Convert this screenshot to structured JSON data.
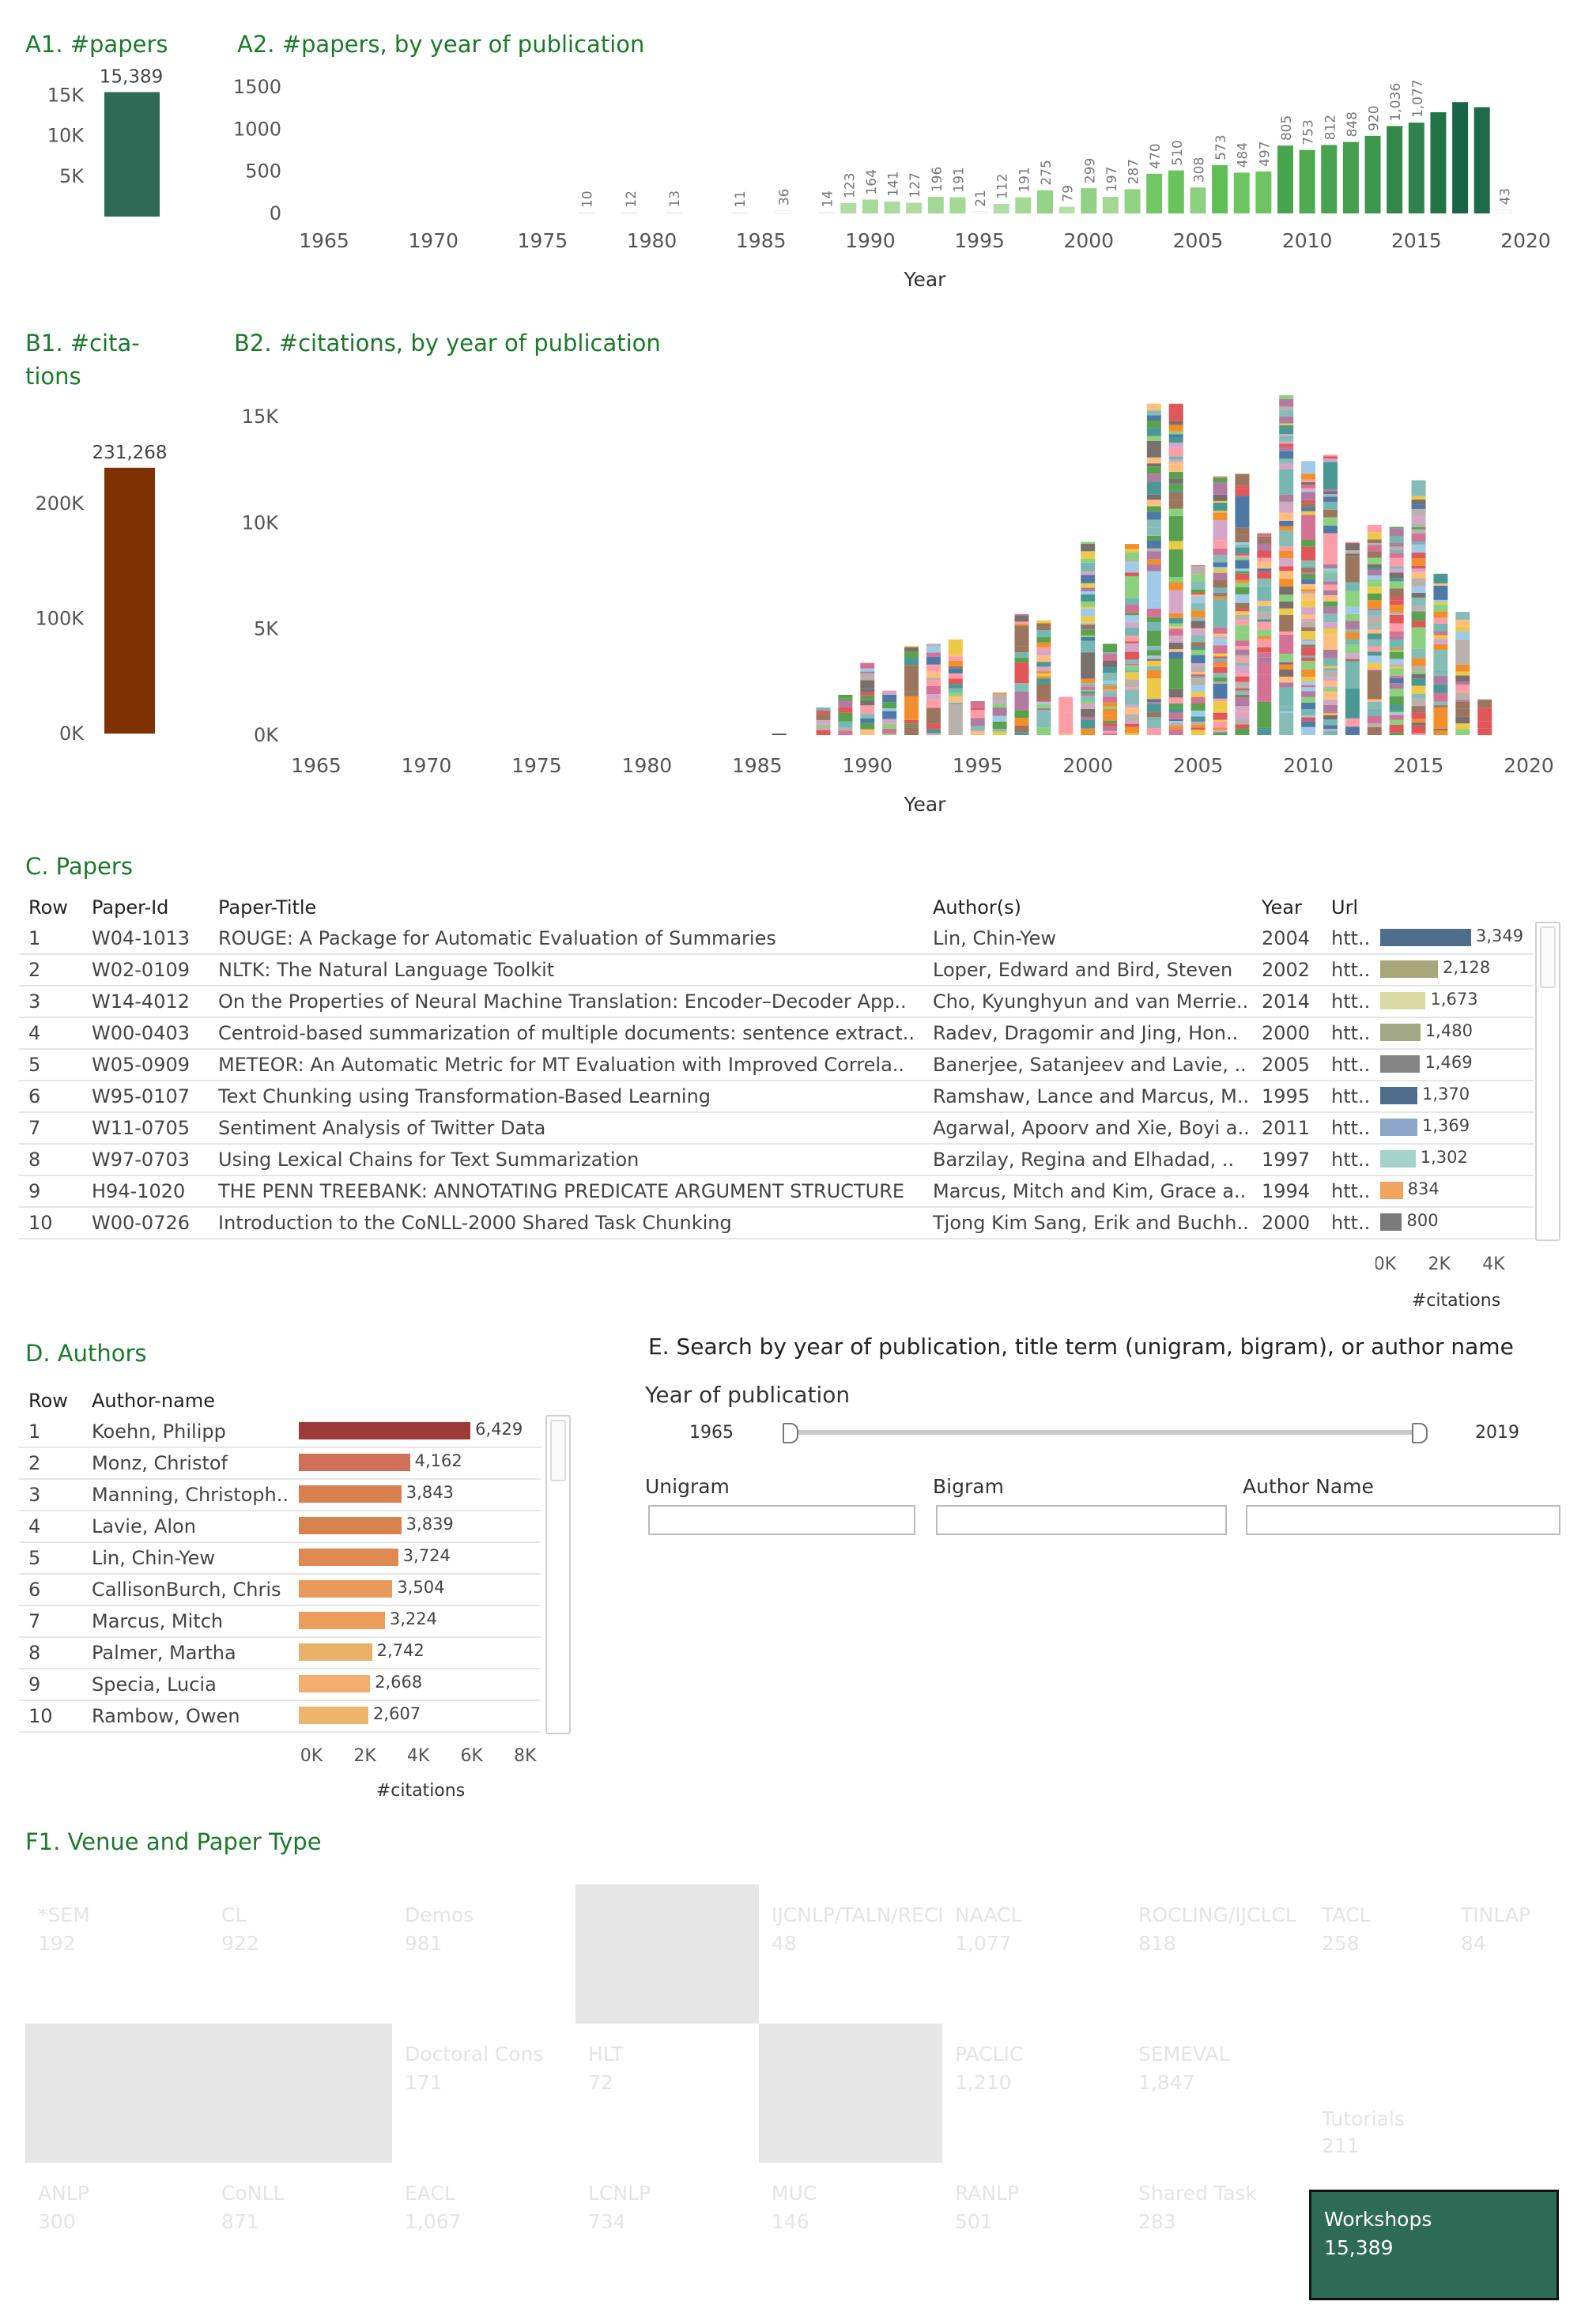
{
  "sections": {
    "a1": "A1. #papers",
    "a2": "A2. #papers, by year of publication",
    "b1_line1": "B1. #cita-",
    "b1_line2": "tions",
    "b2": "B2. #citations, by year of publication",
    "c": "C. Papers",
    "d": "D. Authors",
    "e": "E. Search by year of publication, title term (unigram, bigram), or  author name",
    "f1": "F1. Venue and Paper Type"
  },
  "colors": {
    "accent_green": "#1a7a2a",
    "a1_bar": "#2e6b57",
    "b1_bar": "#7f3104"
  },
  "chart_data": [
    {
      "id": "a1",
      "type": "bar",
      "title": "A1. #papers",
      "values": [
        15389
      ],
      "value_label": "15,389",
      "yticks": [
        "5K",
        "10K",
        "15K"
      ],
      "ylim": [
        0,
        17000
      ]
    },
    {
      "id": "a2",
      "type": "bar",
      "title": "A2. #papers, by year of publication",
      "xlabel": "Year",
      "xticks": [
        1965,
        1970,
        1975,
        1980,
        1985,
        1990,
        1995,
        2000,
        2005,
        2010,
        2015,
        2020
      ],
      "yticks": [
        0,
        500,
        1000,
        1500
      ],
      "ylim": [
        0,
        1500
      ],
      "bars": [
        {
          "x": 1977,
          "v": 10,
          "l": "10"
        },
        {
          "x": 1979,
          "v": 12,
          "l": "12"
        },
        {
          "x": 1981,
          "v": 13,
          "l": "13"
        },
        {
          "x": 1984,
          "v": 11,
          "l": "11"
        },
        {
          "x": 1986,
          "v": 36,
          "l": "36"
        },
        {
          "x": 1988,
          "v": 14,
          "l": "14"
        },
        {
          "x": 1989,
          "v": 123,
          "l": "123"
        },
        {
          "x": 1990,
          "v": 164,
          "l": "164"
        },
        {
          "x": 1991,
          "v": 141,
          "l": "141"
        },
        {
          "x": 1992,
          "v": 127,
          "l": "127"
        },
        {
          "x": 1993,
          "v": 196,
          "l": "196"
        },
        {
          "x": 1994,
          "v": 191,
          "l": "191"
        },
        {
          "x": 1995,
          "v": 21,
          "l": "21"
        },
        {
          "x": 1996,
          "v": 112,
          "l": "112"
        },
        {
          "x": 1997,
          "v": 191,
          "l": "191"
        },
        {
          "x": 1998,
          "v": 275,
          "l": "275"
        },
        {
          "x": 1999,
          "v": 79,
          "l": "79"
        },
        {
          "x": 2000,
          "v": 299,
          "l": "299"
        },
        {
          "x": 2001,
          "v": 197,
          "l": "197"
        },
        {
          "x": 2002,
          "v": 287,
          "l": "287"
        },
        {
          "x": 2003,
          "v": 470,
          "l": "470"
        },
        {
          "x": 2004,
          "v": 510,
          "l": "510"
        },
        {
          "x": 2005,
          "v": 308,
          "l": "308"
        },
        {
          "x": 2006,
          "v": 573,
          "l": "573"
        },
        {
          "x": 2007,
          "v": 484,
          "l": "484"
        },
        {
          "x": 2008,
          "v": 497,
          "l": "497"
        },
        {
          "x": 2009,
          "v": 805,
          "l": "805"
        },
        {
          "x": 2010,
          "v": 753,
          "l": "753"
        },
        {
          "x": 2011,
          "v": 812,
          "l": "812"
        },
        {
          "x": 2012,
          "v": 848,
          "l": "848"
        },
        {
          "x": 2013,
          "v": 920,
          "l": "920"
        },
        {
          "x": 2014,
          "v": 1036,
          "l": "1,036"
        },
        {
          "x": 2015,
          "v": 1077,
          "l": "1,077"
        },
        {
          "x": 2016,
          "v": 1200,
          "l": ""
        },
        {
          "x": 2017,
          "v": 1320,
          "l": ""
        },
        {
          "x": 2018,
          "v": 1260,
          "l": ""
        },
        {
          "x": 2019,
          "v": 43,
          "l": "43"
        }
      ]
    },
    {
      "id": "b1",
      "type": "bar",
      "title": "B1. #citations",
      "values": [
        231268
      ],
      "value_label": "231,268",
      "yticks": [
        "0K",
        "100K",
        "200K"
      ],
      "ylim": [
        0,
        260000
      ]
    },
    {
      "id": "b2",
      "type": "bar",
      "stacked": true,
      "title": "B2. #citations, by year of publication",
      "xlabel": "Year",
      "xticks": [
        1965,
        1970,
        1975,
        1980,
        1985,
        1990,
        1995,
        2000,
        2005,
        2010,
        2015,
        2020
      ],
      "yticks": [
        "0K",
        "5K",
        "10K",
        "15K"
      ],
      "ylim": [
        0,
        16000
      ],
      "bars": [
        {
          "x": 1986,
          "v": 80
        },
        {
          "x": 1988,
          "v": 1300
        },
        {
          "x": 1989,
          "v": 1900
        },
        {
          "x": 1990,
          "v": 3400
        },
        {
          "x": 1991,
          "v": 2100
        },
        {
          "x": 1992,
          "v": 4200
        },
        {
          "x": 1993,
          "v": 4300
        },
        {
          "x": 1994,
          "v": 4500
        },
        {
          "x": 1995,
          "v": 1600
        },
        {
          "x": 1996,
          "v": 2000
        },
        {
          "x": 1997,
          "v": 5700
        },
        {
          "x": 1998,
          "v": 5400
        },
        {
          "x": 1999,
          "v": 1800
        },
        {
          "x": 2000,
          "v": 9100
        },
        {
          "x": 2001,
          "v": 4300
        },
        {
          "x": 2002,
          "v": 9000
        },
        {
          "x": 2003,
          "v": 15600
        },
        {
          "x": 2004,
          "v": 15600
        },
        {
          "x": 2005,
          "v": 8000
        },
        {
          "x": 2006,
          "v": 12200
        },
        {
          "x": 2007,
          "v": 12300
        },
        {
          "x": 2008,
          "v": 9500
        },
        {
          "x": 2009,
          "v": 16000
        },
        {
          "x": 2010,
          "v": 12900
        },
        {
          "x": 2011,
          "v": 13200
        },
        {
          "x": 2012,
          "v": 9100
        },
        {
          "x": 2013,
          "v": 9900
        },
        {
          "x": 2014,
          "v": 9800
        },
        {
          "x": 2015,
          "v": 12000
        },
        {
          "x": 2016,
          "v": 7600
        },
        {
          "x": 2017,
          "v": 5800
        },
        {
          "x": 2018,
          "v": 1700
        }
      ]
    },
    {
      "id": "c_citations",
      "type": "bar",
      "orientation": "horizontal",
      "xlabel": "#citations",
      "xticks": [
        "0K",
        "2K",
        "4K"
      ],
      "xlim": [
        0,
        5300
      ],
      "values": [
        3349,
        2128,
        1673,
        1480,
        1469,
        1370,
        1369,
        1302,
        834,
        800
      ]
    },
    {
      "id": "d_citations",
      "type": "bar",
      "orientation": "horizontal",
      "xlabel": "#citations",
      "xticks": [
        "0K",
        "2K",
        "4K",
        "6K",
        "8K"
      ],
      "xlim": [
        0,
        9000
      ],
      "values": [
        6429,
        4162,
        3843,
        3839,
        3724,
        3504,
        3224,
        2742,
        2668,
        2607
      ]
    },
    {
      "id": "f1",
      "type": "treemap",
      "title": "F1. Venue and Paper Type",
      "selected": "Workshops"
    }
  ],
  "papers_table": {
    "headers": [
      "Row",
      "Paper-Id",
      "Paper-Title",
      "Author(s)",
      "Year",
      "Url"
    ],
    "rows": [
      {
        "row": "1",
        "id": "W04-1013",
        "title": "ROUGE: A Package for Automatic Evaluation of Summaries",
        "authors": "Lin, Chin-Yew",
        "year": "2004",
        "url": "htt..",
        "cit": 3349,
        "cit_label": "3,349",
        "color": "#4e6d8c"
      },
      {
        "row": "2",
        "id": "W02-0109",
        "title": "NLTK: The Natural Language Toolkit",
        "authors": "Loper, Edward and Bird, Steven",
        "year": "2002",
        "url": "htt..",
        "cit": 2128,
        "cit_label": "2,128",
        "color": "#a8a77a"
      },
      {
        "row": "3",
        "id": "W14-4012",
        "title": "On the Properties of Neural Machine Translation: Encoder–Decoder App..",
        "authors": "Cho, Kyunghyun and van Merrie..",
        "year": "2014",
        "url": "htt..",
        "cit": 1673,
        "cit_label": "1,673",
        "color": "#d9dba3"
      },
      {
        "row": "4",
        "id": "W00-0403",
        "title": "Centroid-based summarization of multiple documents: sentence extract..",
        "authors": "Radev, Dragomir and Jing, Hon..",
        "year": "2000",
        "url": "htt..",
        "cit": 1480,
        "cit_label": "1,480",
        "color": "#a3a885"
      },
      {
        "row": "5",
        "id": "W05-0909",
        "title": "METEOR: An Automatic Metric for MT Evaluation with Improved Correla..",
        "authors": "Banerjee, Satanjeev and Lavie, ..",
        "year": "2005",
        "url": "htt..",
        "cit": 1469,
        "cit_label": "1,469",
        "color": "#858585"
      },
      {
        "row": "6",
        "id": "W95-0107",
        "title": "Text Chunking using Transformation-Based Learning",
        "authors": "Ramshaw, Lance and Marcus, M..",
        "year": "1995",
        "url": "htt..",
        "cit": 1370,
        "cit_label": "1,370",
        "color": "#4d6c8c"
      },
      {
        "row": "7",
        "id": "W11-0705",
        "title": "Sentiment Analysis of Twitter Data",
        "authors": "Agarwal, Apoorv and Xie, Boyi a..",
        "year": "2011",
        "url": "htt..",
        "cit": 1369,
        "cit_label": "1,369",
        "color": "#8aa7c9"
      },
      {
        "row": "8",
        "id": "W97-0703",
        "title": "Using Lexical Chains for Text Summarization",
        "authors": "Barzilay, Regina and Elhadad, ..",
        "year": "1997",
        "url": "htt..",
        "cit": 1302,
        "cit_label": "1,302",
        "color": "#a5d3c9"
      },
      {
        "row": "9",
        "id": "H94-1020",
        "title": "THE PENN TREEBANK: ANNOTATING PREDICATE ARGUMENT STRUCTURE",
        "authors": "Marcus, Mitch and Kim, Grace a..",
        "year": "1994",
        "url": "htt..",
        "cit": 834,
        "cit_label": "834",
        "color": "#f2a35e"
      },
      {
        "row": "10",
        "id": "W00-0726",
        "title": "Introduction to the CoNLL-2000 Shared Task Chunking",
        "authors": "Tjong Kim Sang, Erik and Buchh..",
        "year": "2000",
        "url": "htt..",
        "cit": 800,
        "cit_label": "800",
        "color": "#7a7a7a"
      }
    ]
  },
  "authors_table": {
    "headers": [
      "Row",
      "Author-name"
    ],
    "rows": [
      {
        "row": "1",
        "name": "Koehn, Philipp",
        "cit": 6429,
        "cit_label": "6,429",
        "color": "#9e3a37"
      },
      {
        "row": "2",
        "name": "Monz, Christof",
        "cit": 4162,
        "cit_label": "4,162",
        "color": "#d07058"
      },
      {
        "row": "3",
        "name": "Manning, Christoph..",
        "cit": 3843,
        "cit_label": "3,843",
        "color": "#d9804f"
      },
      {
        "row": "4",
        "name": "Lavie, Alon",
        "cit": 3839,
        "cit_label": "3,839",
        "color": "#d9814f"
      },
      {
        "row": "5",
        "name": "Lin, Chin-Yew",
        "cit": 3724,
        "cit_label": "3,724",
        "color": "#de8950"
      },
      {
        "row": "6",
        "name": "CallisonBurch, Chris",
        "cit": 3504,
        "cit_label": "3,504",
        "color": "#e99a5a"
      },
      {
        "row": "7",
        "name": "Marcus, Mitch",
        "cit": 3224,
        "cit_label": "3,224",
        "color": "#ee9c5c"
      },
      {
        "row": "8",
        "name": "Palmer, Martha",
        "cit": 2742,
        "cit_label": "2,742",
        "color": "#e9b068"
      },
      {
        "row": "9",
        "name": "Specia, Lucia",
        "cit": 2668,
        "cit_label": "2,668",
        "color": "#f4ad6d"
      },
      {
        "row": "10",
        "name": "Rambow, Owen",
        "cit": 2607,
        "cit_label": "2,607",
        "color": "#efb46c"
      }
    ]
  },
  "search": {
    "year_label": "Year of publication",
    "year_min": "1965",
    "year_max": "2019",
    "unigram_label": "Unigram",
    "bigram_label": "Bigram",
    "author_label": "Author Name"
  },
  "treemap": {
    "tiles": [
      {
        "name": "*SEM",
        "value": "192",
        "grey": false
      },
      {
        "name": "CL",
        "value": "922",
        "grey": false
      },
      {
        "name": "Demos",
        "value": "981",
        "grey": false
      },
      {
        "name": "",
        "value": "",
        "grey": true
      },
      {
        "name": "IJCNLP/TALN/RECI",
        "value": "48",
        "grey": false
      },
      {
        "name": "NAACL",
        "value": "1,077",
        "grey": false
      },
      {
        "name": "ROCLING/IJCLCL",
        "value": "818",
        "grey": false
      },
      {
        "name": "TACL",
        "value": "258",
        "grey": false
      },
      {
        "name": "TINLAP",
        "value": "84",
        "grey": false
      },
      {
        "name": "",
        "value": "",
        "grey": true
      },
      {
        "name": "Doctoral Cons",
        "value": "171",
        "grey": false
      },
      {
        "name": "HLT",
        "value": "72",
        "grey": false
      },
      {
        "name": "",
        "value": "",
        "grey": true
      },
      {
        "name": "PACLIC",
        "value": "1,210",
        "grey": false
      },
      {
        "name": "SEMEVAL",
        "value": "1,847",
        "grey": false
      },
      {
        "name": "Tutorials",
        "value": "211",
        "grey": false
      },
      {
        "name": "ANLP",
        "value": "300",
        "grey": false
      },
      {
        "name": "CoNLL",
        "value": "871",
        "grey": false
      },
      {
        "name": "EACL",
        "value": "1,067",
        "grey": false
      },
      {
        "name": "LCNLP",
        "value": "734",
        "grey": false
      },
      {
        "name": "MUC",
        "value": "146",
        "grey": false
      },
      {
        "name": "RANLP",
        "value": "501",
        "grey": false
      },
      {
        "name": "Shared Task",
        "value": "283",
        "grey": false
      }
    ],
    "selected": {
      "name": "Workshops",
      "value": "15,389"
    }
  }
}
